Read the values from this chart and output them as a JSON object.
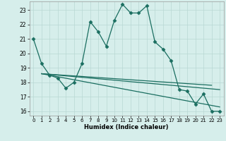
{
  "xlabel": "Humidex (Indice chaleur)",
  "xlim": [
    -0.5,
    23.5
  ],
  "ylim": [
    15.7,
    23.6
  ],
  "yticks": [
    16,
    17,
    18,
    19,
    20,
    21,
    22,
    23
  ],
  "xticks": [
    0,
    1,
    2,
    3,
    4,
    5,
    6,
    7,
    8,
    9,
    10,
    11,
    12,
    13,
    14,
    15,
    16,
    17,
    18,
    19,
    20,
    21,
    22,
    23
  ],
  "bg_color": "#d6eeeb",
  "grid_color": "#b8d8d4",
  "line_color": "#1a6e60",
  "line1_x": [
    0,
    1,
    2,
    3,
    4,
    5,
    6,
    7,
    8,
    9,
    10,
    11,
    12,
    13,
    14,
    15,
    16,
    17,
    18,
    19,
    20,
    21,
    22,
    23
  ],
  "line1_y": [
    21.0,
    19.3,
    18.5,
    18.3,
    17.6,
    18.0,
    19.3,
    22.2,
    21.5,
    20.5,
    22.3,
    23.4,
    22.8,
    22.8,
    23.3,
    20.8,
    20.3,
    19.5,
    17.5,
    17.4,
    16.5,
    17.2,
    16.0,
    16.0
  ],
  "line2_x": [
    1,
    23
  ],
  "line2_y": [
    18.6,
    17.5
  ],
  "line3_x": [
    1,
    23
  ],
  "line3_y": [
    18.6,
    16.3
  ],
  "line4_x": [
    1,
    22
  ],
  "line4_y": [
    18.6,
    17.8
  ]
}
